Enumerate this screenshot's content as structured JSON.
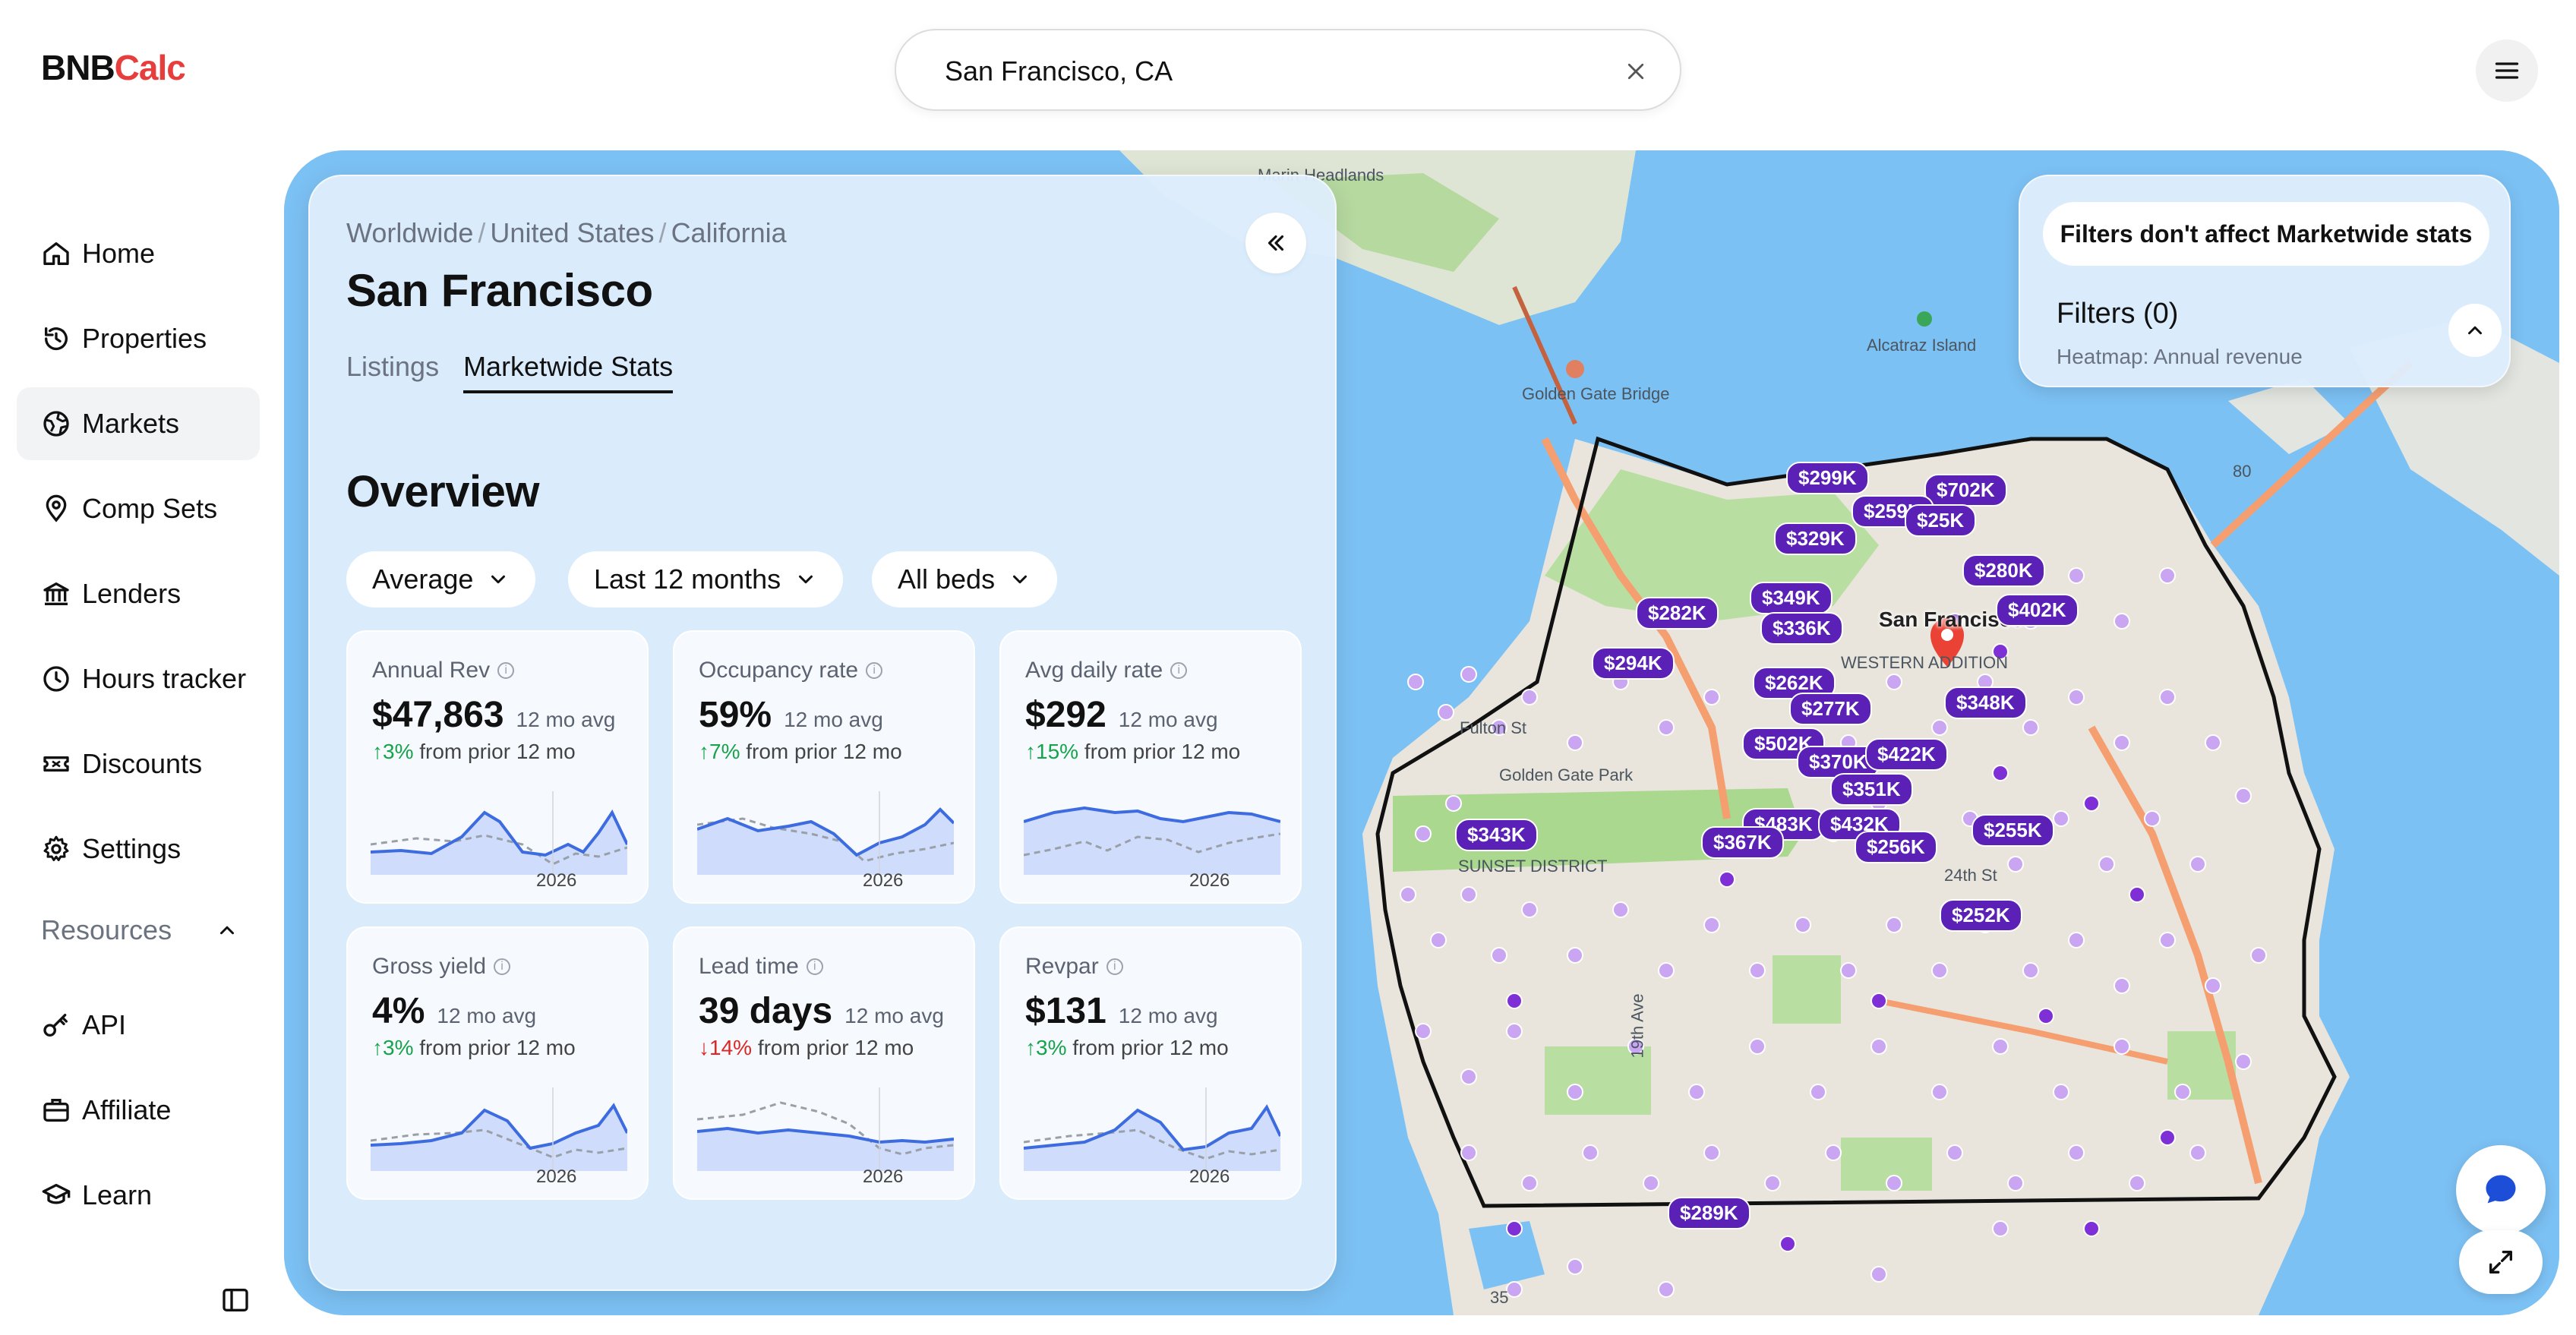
{
  "app": {
    "logo_main": "BNB",
    "logo_accent": "Calc"
  },
  "search": {
    "value": "San Francisco, CA",
    "clear_icon": "close-icon"
  },
  "header": {
    "menu_icon": "hamburger-menu-icon"
  },
  "sidebar": {
    "items": [
      {
        "label": "Home",
        "icon": "home-icon",
        "active": false
      },
      {
        "label": "Properties",
        "icon": "history-icon",
        "active": false
      },
      {
        "label": "Markets",
        "icon": "globe-icon",
        "active": true
      },
      {
        "label": "Comp Sets",
        "icon": "map-pin-icon",
        "active": false
      },
      {
        "label": "Lenders",
        "icon": "bank-icon",
        "active": false
      },
      {
        "label": "Hours tracker",
        "icon": "clock-icon",
        "active": false
      },
      {
        "label": "Discounts",
        "icon": "ticket-icon",
        "active": false
      },
      {
        "label": "Settings",
        "icon": "gear-icon",
        "active": false
      }
    ],
    "resources_label": "Resources",
    "resources": [
      {
        "label": "API",
        "icon": "key-icon"
      },
      {
        "label": "Affiliate",
        "icon": "briefcase-icon"
      },
      {
        "label": "Learn",
        "icon": "graduation-cap-icon"
      }
    ]
  },
  "panel": {
    "breadcrumb": [
      "Worldwide",
      "United States",
      "California"
    ],
    "title": "San Francisco",
    "tabs": [
      {
        "label": "Listings",
        "active": false
      },
      {
        "label": "Marketwide Stats",
        "active": true
      }
    ],
    "section_title": "Overview",
    "dropdowns": [
      "Average",
      "Last 12 months",
      "All beds"
    ],
    "cards": [
      {
        "label": "Annual Rev",
        "value": "$47,863",
        "sub": "12 mo avg",
        "change_dir": "up",
        "change": "3%",
        "change_text": "from prior 12 mo",
        "year": "2026"
      },
      {
        "label": "Occupancy rate",
        "value": "59%",
        "sub": "12 mo avg",
        "change_dir": "up",
        "change": "7%",
        "change_text": "from prior 12 mo",
        "year": "2026"
      },
      {
        "label": "Avg daily rate",
        "value": "$292",
        "sub": "12 mo avg",
        "change_dir": "up",
        "change": "15%",
        "change_text": "from prior 12 mo",
        "year": "2026"
      },
      {
        "label": "Gross yield",
        "value": "4%",
        "sub": "12 mo avg",
        "change_dir": "up",
        "change": "3%",
        "change_text": "from prior 12 mo",
        "year": "2026"
      },
      {
        "label": "Lead time",
        "value": "39 days",
        "sub": "12 mo avg",
        "change_dir": "down",
        "change": "14%",
        "change_text": "from prior 12 mo",
        "year": "2026"
      },
      {
        "label": "Revpar",
        "value": "$131",
        "sub": "12 mo avg",
        "change_dir": "up",
        "change": "3%",
        "change_text": "from prior 12 mo",
        "year": "2026"
      }
    ]
  },
  "filters": {
    "notice": "Filters don't affect Marketwide stats",
    "title": "Filters (0)",
    "subtitle": "Heatmap: Annual revenue"
  },
  "map": {
    "place_labels": [
      "Alcatraz Island",
      "Golden Gate Bridge",
      "Marin Headlands",
      "San Francisco",
      "Golden Gate Park",
      "Fulton St",
      "19th Ave",
      "24th St",
      "SUNSET DISTRICT",
      "WESTERN ADDITION",
      "35",
      "80"
    ],
    "price_tags": [
      "$299K",
      "$702K",
      "$259K",
      "$329K",
      "$25K",
      "$280K",
      "$282K",
      "$349K",
      "$336K",
      "$402K",
      "$294K",
      "$262K",
      "$277K",
      "$348K",
      "$502K",
      "$370K",
      "$422K",
      "$351K",
      "$343K",
      "$483K",
      "$432K",
      "$367K",
      "$256K",
      "$255K",
      "$252K",
      "$289K"
    ]
  },
  "colors": {
    "accent": "#e83d3d",
    "map_water": "#7cc1f4",
    "pin": "#5b21b6"
  }
}
